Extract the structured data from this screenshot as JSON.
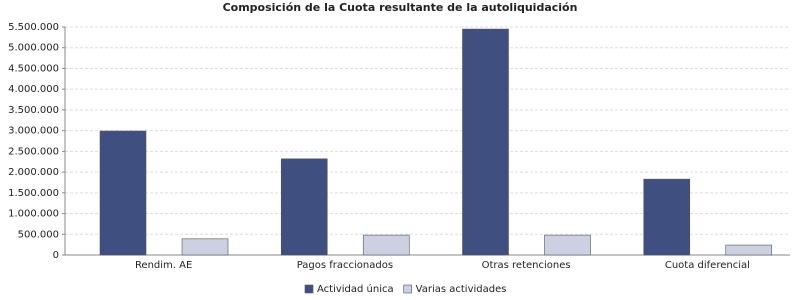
{
  "chart_data": {
    "type": "bar",
    "title": "Composición de la Cuota resultante de la autoliquidación",
    "categories": [
      "Rendim. AE",
      "Pagos fraccionados",
      "Otras retenciones",
      "Cuota diferencial"
    ],
    "series": [
      {
        "name": "Actividad única",
        "color": "#3f4f7f",
        "values": [
          2990000,
          2320000,
          5450000,
          1830000
        ]
      },
      {
        "name": "Varias actividades",
        "color": "#cdd0e3",
        "values": [
          390000,
          480000,
          480000,
          240000
        ]
      }
    ],
    "ylim": [
      0,
      5500000
    ],
    "yticks": [
      0,
      {
        "value": 500000,
        "label": "500.000"
      },
      {
        "value": 1000000,
        "label": "1.000.000"
      },
      {
        "value": 1500000,
        "label": "1.500.000"
      },
      {
        "value": 2000000,
        "label": "2.000.000"
      },
      {
        "value": 2500000,
        "label": "2.500.000"
      },
      {
        "value": 3000000,
        "label": "3.000.000"
      },
      {
        "value": 3500000,
        "label": "3.500.000"
      },
      {
        "value": 4000000,
        "label": "4.000.000"
      },
      {
        "value": 4500000,
        "label": "4.500.000"
      },
      {
        "value": 5000000,
        "label": "5.000.000"
      },
      {
        "value": 5500000,
        "label": "5.500.000"
      }
    ],
    "grid": true,
    "legend": "bottom"
  }
}
